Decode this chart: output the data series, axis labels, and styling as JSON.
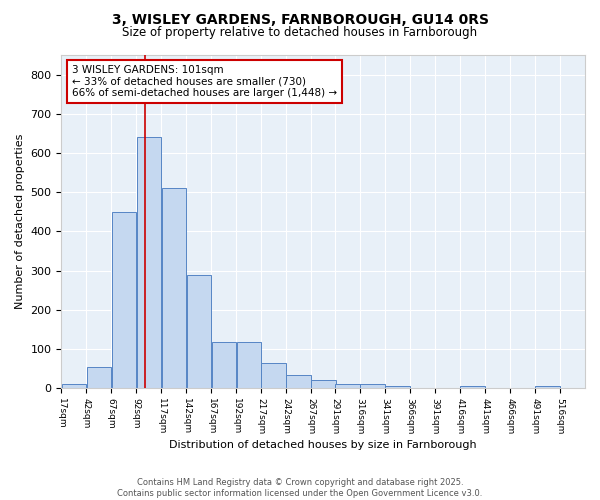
{
  "title_line1": "3, WISLEY GARDENS, FARNBOROUGH, GU14 0RS",
  "title_line2": "Size of property relative to detached houses in Farnborough",
  "xlabel": "Distribution of detached houses by size in Farnborough",
  "ylabel": "Number of detached properties",
  "annotation_line1": "3 WISLEY GARDENS: 101sqm",
  "annotation_line2": "← 33% of detached houses are smaller (730)",
  "annotation_line3": "66% of semi-detached houses are larger (1,448) →",
  "footer_line1": "Contains HM Land Registry data © Crown copyright and database right 2025.",
  "footer_line2": "Contains public sector information licensed under the Open Government Licence v3.0.",
  "bar_edges": [
    17,
    42,
    67,
    92,
    117,
    142,
    167,
    192,
    217,
    242,
    267,
    291,
    316,
    341,
    366,
    391,
    416,
    441,
    466,
    491,
    516
  ],
  "bar_heights": [
    12,
    55,
    450,
    640,
    510,
    290,
    118,
    118,
    65,
    35,
    22,
    10,
    10,
    5,
    0,
    0,
    5,
    0,
    0,
    5,
    0
  ],
  "bar_color": "#c5d8f0",
  "bar_edge_color": "#5585c5",
  "vline_x": 101,
  "vline_color": "#cc0000",
  "ylim": [
    0,
    850
  ],
  "xlim": [
    17,
    541
  ],
  "bg_color": "#ffffff",
  "plot_bg_color": "#e8f0f8",
  "grid_color": "#ffffff",
  "tick_labels": [
    "17sqm",
    "42sqm",
    "67sqm",
    "92sqm",
    "117sqm",
    "142sqm",
    "167sqm",
    "192sqm",
    "217sqm",
    "242sqm",
    "267sqm",
    "291sqm",
    "316sqm",
    "341sqm",
    "366sqm",
    "391sqm",
    "416sqm",
    "441sqm",
    "466sqm",
    "491sqm",
    "516sqm"
  ]
}
